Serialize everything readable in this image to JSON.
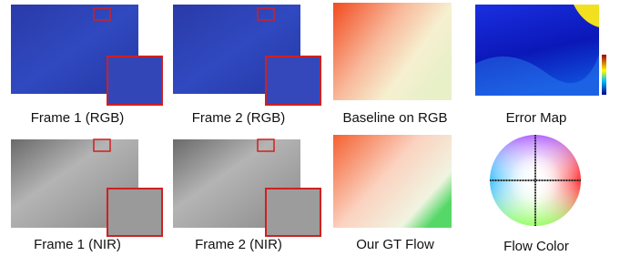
{
  "figure": {
    "panels": [
      {
        "caption": "Frame 1 (RGB)"
      },
      {
        "caption": "Frame 2 (RGB)"
      },
      {
        "caption": "Baseline on RGB"
      },
      {
        "caption": "Error Map"
      },
      {
        "caption": "Frame 1 (NIR)"
      },
      {
        "caption": "Frame 2 (NIR)"
      },
      {
        "caption": "Our GT Flow"
      },
      {
        "caption": "Flow Color"
      }
    ]
  }
}
